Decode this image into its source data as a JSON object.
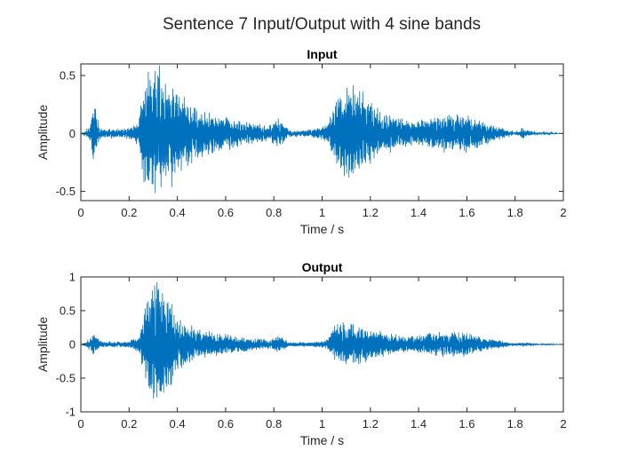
{
  "figure": {
    "suptitle": "Sentence 7 Input/Output with 4 sine bands",
    "line_color": "#0072BD"
  },
  "chart_data": [
    {
      "type": "line",
      "title": "Input",
      "xlabel": "Time / s",
      "ylabel": "Amplitude",
      "xlim": [
        0,
        2
      ],
      "ylim": [
        -0.58,
        0.6
      ],
      "xticks": [
        0,
        0.2,
        0.4,
        0.6,
        0.8,
        1,
        1.2,
        1.4,
        1.6,
        1.8,
        2
      ],
      "xtick_labels": [
        "0",
        "0.2",
        "0.4",
        "0.6",
        "0.8",
        "1",
        "1.2",
        "1.4",
        "1.6",
        "1.8",
        "2"
      ],
      "yticks": [
        -0.5,
        0,
        0.5
      ],
      "ytick_labels": [
        "-0.5",
        "0",
        "0.5"
      ],
      "grid": false,
      "series": [
        {
          "x": [
            0.0,
            0.02,
            0.04,
            0.05,
            0.06,
            0.07,
            0.08,
            0.1,
            0.15,
            0.2,
            0.24,
            0.26,
            0.28,
            0.3,
            0.32,
            0.34,
            0.36,
            0.38,
            0.4,
            0.42,
            0.45,
            0.5,
            0.55,
            0.6,
            0.65,
            0.7,
            0.75,
            0.78,
            0.8,
            0.82,
            0.84,
            0.86,
            0.9,
            0.95,
            1.0,
            1.03,
            1.05,
            1.08,
            1.1,
            1.13,
            1.15,
            1.18,
            1.2,
            1.25,
            1.3,
            1.35,
            1.4,
            1.45,
            1.5,
            1.55,
            1.6,
            1.65,
            1.7,
            1.75,
            1.78,
            1.8,
            1.82,
            1.83,
            1.84,
            1.86,
            1.9,
            1.95,
            1.98
          ],
          "y": [
            0.0,
            0.02,
            0.1,
            0.3,
            0.25,
            0.12,
            0.05,
            0.04,
            0.04,
            0.05,
            0.1,
            0.45,
            0.55,
            0.6,
            0.6,
            0.55,
            0.5,
            0.45,
            0.4,
            0.35,
            0.28,
            0.22,
            0.18,
            0.16,
            0.12,
            0.1,
            0.08,
            0.06,
            0.1,
            0.15,
            0.1,
            0.03,
            0.03,
            0.03,
            0.05,
            0.12,
            0.25,
            0.38,
            0.42,
            0.44,
            0.42,
            0.35,
            0.28,
            0.2,
            0.15,
            0.12,
            0.12,
            0.15,
            0.16,
            0.18,
            0.17,
            0.12,
            0.08,
            0.05,
            0.02,
            0.02,
            0.02,
            0.08,
            0.03,
            0.02,
            0.01,
            0.01,
            0.0
          ]
        }
      ]
    },
    {
      "type": "line",
      "title": "Output",
      "xlabel": "Time / s",
      "ylabel": "Amplitude",
      "xlim": [
        0,
        2
      ],
      "ylim": [
        -1,
        1
      ],
      "xticks": [
        0,
        0.2,
        0.4,
        0.6,
        0.8,
        1,
        1.2,
        1.4,
        1.6,
        1.8,
        2
      ],
      "xtick_labels": [
        "0",
        "0.2",
        "0.4",
        "0.6",
        "0.8",
        "1",
        "1.2",
        "1.4",
        "1.6",
        "1.8",
        "2"
      ],
      "yticks": [
        -1,
        -0.5,
        0,
        0.5,
        1
      ],
      "ytick_labels": [
        "-1",
        "-0.5",
        "0",
        "0.5",
        "1"
      ],
      "grid": false,
      "series": [
        {
          "x": [
            0.0,
            0.02,
            0.04,
            0.05,
            0.06,
            0.07,
            0.08,
            0.1,
            0.15,
            0.2,
            0.24,
            0.26,
            0.28,
            0.3,
            0.32,
            0.34,
            0.36,
            0.38,
            0.4,
            0.42,
            0.45,
            0.5,
            0.55,
            0.6,
            0.65,
            0.7,
            0.75,
            0.78,
            0.8,
            0.82,
            0.84,
            0.86,
            0.9,
            0.95,
            1.0,
            1.03,
            1.05,
            1.08,
            1.1,
            1.13,
            1.15,
            1.18,
            1.2,
            1.25,
            1.3,
            1.35,
            1.4,
            1.45,
            1.5,
            1.55,
            1.6,
            1.65,
            1.7,
            1.75,
            1.78,
            1.8,
            1.82,
            1.83,
            1.84,
            1.86,
            1.9,
            1.95,
            1.98
          ],
          "y": [
            0.0,
            0.03,
            0.1,
            0.18,
            0.15,
            0.1,
            0.05,
            0.04,
            0.04,
            0.05,
            0.12,
            0.5,
            0.75,
            0.98,
            1.0,
            0.9,
            0.75,
            0.6,
            0.45,
            0.38,
            0.3,
            0.22,
            0.18,
            0.15,
            0.12,
            0.1,
            0.08,
            0.06,
            0.1,
            0.15,
            0.1,
            0.03,
            0.03,
            0.03,
            0.05,
            0.12,
            0.28,
            0.35,
            0.3,
            0.32,
            0.3,
            0.28,
            0.25,
            0.2,
            0.15,
            0.12,
            0.14,
            0.18,
            0.2,
            0.2,
            0.18,
            0.12,
            0.08,
            0.05,
            0.02,
            0.02,
            0.02,
            0.04,
            0.02,
            0.02,
            0.01,
            0.01,
            0.0
          ]
        }
      ]
    }
  ]
}
